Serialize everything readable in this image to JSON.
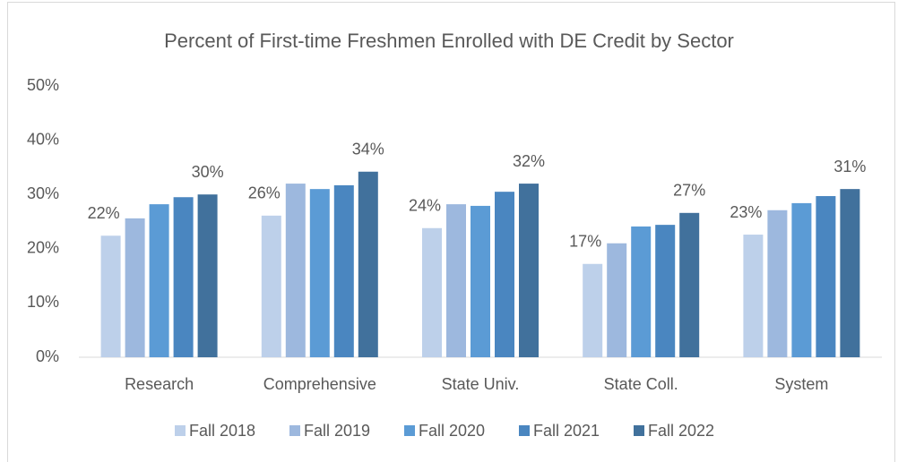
{
  "chart_data": {
    "type": "bar",
    "title": "Percent of First-time Freshmen Enrolled with DE Credit by Sector",
    "categories": [
      "Research",
      "Comprehensive",
      "State Univ.",
      "State Coll.",
      "System"
    ],
    "series": [
      {
        "name": "Fall 2018",
        "color": "#bdd0ea",
        "values": [
          22.4,
          26.1,
          23.8,
          17.2,
          22.6
        ],
        "value_labels": [
          "22%",
          "26%",
          "24%",
          "17%",
          "23%"
        ]
      },
      {
        "name": "Fall 2019",
        "color": "#9db8de",
        "values": [
          25.6,
          32.0,
          28.2,
          21.0,
          27.1
        ]
      },
      {
        "name": "Fall 2020",
        "color": "#5b9bd5",
        "values": [
          28.2,
          31.0,
          27.9,
          24.1,
          28.4
        ]
      },
      {
        "name": "Fall 2021",
        "color": "#4a86c0",
        "values": [
          29.5,
          31.7,
          30.5,
          24.4,
          29.7
        ]
      },
      {
        "name": "Fall 2022",
        "color": "#41719c",
        "values": [
          30.0,
          34.2,
          32.0,
          26.6,
          31.0
        ],
        "value_labels": [
          "30%",
          "34%",
          "32%",
          "27%",
          "31%"
        ]
      }
    ],
    "ylim": [
      0,
      50
    ],
    "yticks": [
      {
        "value": 0,
        "label": "0%"
      },
      {
        "value": 10,
        "label": "10%"
      },
      {
        "value": 20,
        "label": "20%"
      },
      {
        "value": 30,
        "label": "30%"
      },
      {
        "value": 40,
        "label": "40%"
      },
      {
        "value": 50,
        "label": "50%"
      }
    ],
    "legend": "bottom"
  }
}
